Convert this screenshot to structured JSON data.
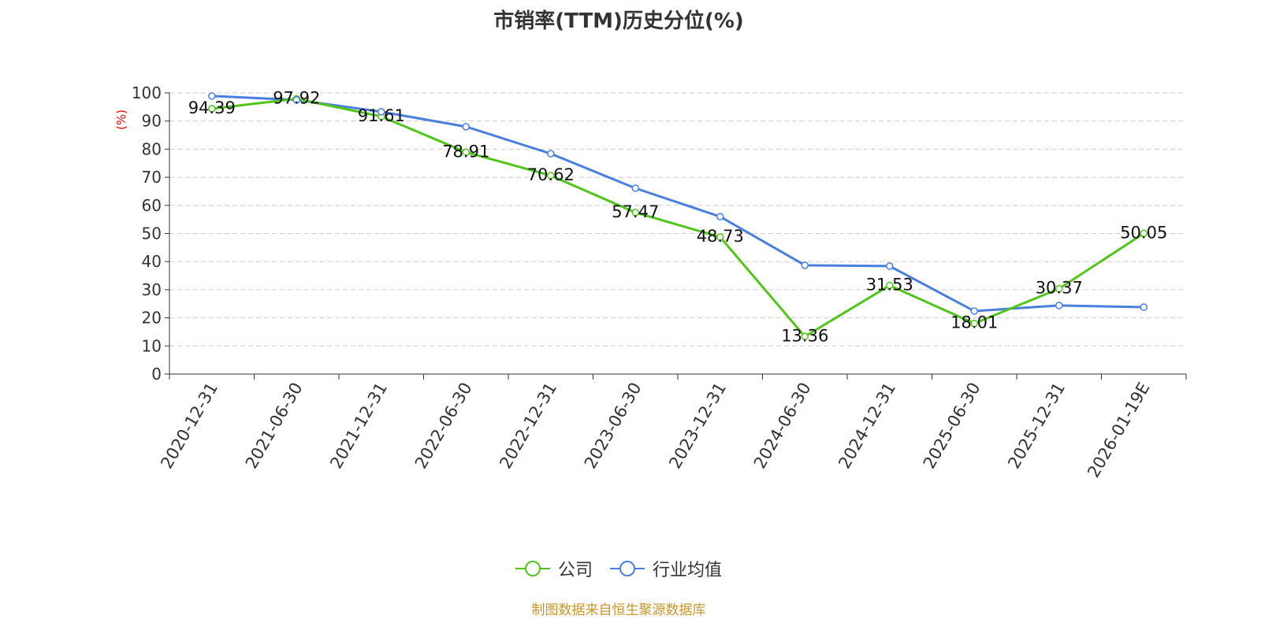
{
  "chart_data": {
    "type": "line",
    "title": "市销率(TTM)历史分位(%)",
    "ylabel": "(%)",
    "xlabel": "",
    "ylim": [
      0,
      100
    ],
    "yticks": [
      0,
      10,
      20,
      30,
      40,
      50,
      60,
      70,
      80,
      90,
      100
    ],
    "grid": true,
    "legend_position": "bottom",
    "categories": [
      "2020-12-31",
      "2021-06-30",
      "2021-12-31",
      "2022-06-30",
      "2022-12-31",
      "2023-06-30",
      "2023-12-31",
      "2024-06-30",
      "2024-12-31",
      "2025-06-30",
      "2025-12-31",
      "2026-01-19E"
    ],
    "series": [
      {
        "name": "公司",
        "color": "#52c41a",
        "values": [
          94.39,
          97.92,
          91.61,
          78.91,
          70.62,
          57.47,
          48.73,
          13.36,
          31.53,
          18.01,
          30.37,
          50.05
        ],
        "labels": true
      },
      {
        "name": "行业均值",
        "color": "#4a7fe0",
        "values": [
          98.9,
          97.5,
          93.3,
          88.0,
          78.4,
          66.1,
          56.0,
          38.7,
          38.4,
          22.4,
          24.4,
          23.8
        ],
        "labels": false
      }
    ]
  },
  "footer": "制图数据来自恒生聚源数据库"
}
